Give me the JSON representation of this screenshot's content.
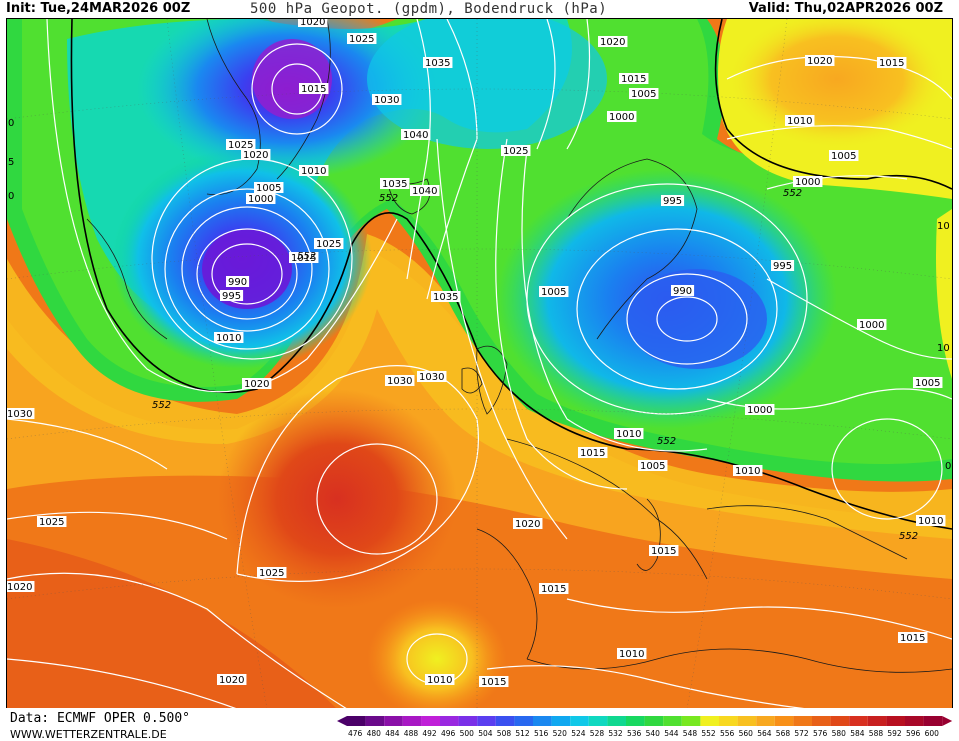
{
  "header": {
    "init": "Init: Tue,24MAR2026 00Z",
    "title": "500 hPa Geopot. (gpdm), Bodendruck (hPa)",
    "valid": "Valid: Thu,02APR2026 00Z"
  },
  "footer": {
    "data_source": "Data: ECMWF OPER 0.500°",
    "website": "WWW.WETTERZENTRALE.DE"
  },
  "legend": {
    "values": [
      "476",
      "480",
      "484",
      "488",
      "492",
      "496",
      "500",
      "504",
      "508",
      "512",
      "516",
      "520",
      "524",
      "528",
      "532",
      "536",
      "540",
      "544",
      "548",
      "552",
      "556",
      "560",
      "564",
      "568",
      "572",
      "576",
      "580",
      "584",
      "588",
      "592",
      "596",
      "600"
    ],
    "colors": [
      "#4b0068",
      "#6a0a8a",
      "#8a10a8",
      "#a818c4",
      "#c020d8",
      "#9a28e0",
      "#7a30e8",
      "#5a3ef0",
      "#3a50f0",
      "#2868f0",
      "#1a88f0",
      "#10a8f0",
      "#10c8e8",
      "#10d8c0",
      "#10d890",
      "#18d860",
      "#30d840",
      "#50e030",
      "#78e820",
      "#f0f020",
      "#f8d820",
      "#f8c020",
      "#f8a820",
      "#f89018",
      "#f07818",
      "#e86018",
      "#e04818",
      "#d83020",
      "#c82020",
      "#b81020",
      "#a80828",
      "#980030"
    ]
  },
  "map": {
    "isobars": [
      {
        "value": "1020"
      },
      {
        "value": "1025"
      },
      {
        "value": "1015"
      },
      {
        "value": "1035"
      },
      {
        "value": "1020"
      },
      {
        "value": "1015"
      },
      {
        "value": "1005"
      },
      {
        "value": "1020"
      },
      {
        "value": "1015"
      },
      {
        "value": "1000"
      },
      {
        "value": "1010"
      },
      {
        "value": "1005"
      },
      {
        "value": "1000"
      },
      {
        "value": "1030"
      },
      {
        "value": "1040"
      },
      {
        "value": "1025"
      },
      {
        "value": "1020"
      },
      {
        "value": "1010"
      },
      {
        "value": "1005"
      },
      {
        "value": "1000"
      },
      {
        "value": "1035"
      },
      {
        "value": "1040"
      },
      {
        "value": "995"
      },
      {
        "value": "1025"
      },
      {
        "value": "1025"
      },
      {
        "value": "1015"
      },
      {
        "value": "995"
      },
      {
        "value": "990"
      },
      {
        "value": "995"
      },
      {
        "value": "1005"
      },
      {
        "value": "990"
      },
      {
        "value": "1035"
      },
      {
        "value": "1000"
      },
      {
        "value": "1010"
      },
      {
        "value": "1020"
      },
      {
        "value": "1030"
      },
      {
        "value": "1030"
      },
      {
        "value": "1030"
      },
      {
        "value": "1005"
      },
      {
        "value": "1000"
      },
      {
        "value": "1010"
      },
      {
        "value": "1015"
      },
      {
        "value": "1005"
      },
      {
        "value": "1010"
      },
      {
        "value": "1025"
      },
      {
        "value": "1020"
      },
      {
        "value": "1025"
      },
      {
        "value": "1015"
      },
      {
        "value": "1020"
      },
      {
        "value": "1015"
      },
      {
        "value": "1010"
      },
      {
        "value": "1010"
      },
      {
        "value": "1015"
      },
      {
        "value": "1010"
      },
      {
        "value": "1020"
      },
      {
        "value": "1015"
      }
    ],
    "geopotential_labels": [
      "552",
      "552",
      "552",
      "552",
      "552",
      "552"
    ],
    "edge_labels": [
      "0",
      "5",
      "0",
      "0",
      "10",
      "10"
    ]
  }
}
